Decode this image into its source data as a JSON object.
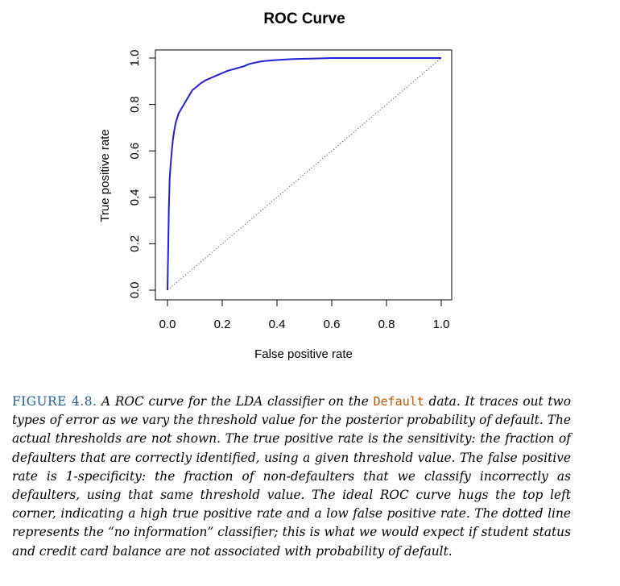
{
  "chart_data": {
    "type": "line",
    "title": "ROC Curve",
    "xlabel": "False positive rate",
    "ylabel": "True positive rate",
    "xlim": [
      0,
      1
    ],
    "ylim": [
      0,
      1
    ],
    "x_ticks": [
      "0.0",
      "0.2",
      "0.4",
      "0.6",
      "0.8",
      "1.0"
    ],
    "y_ticks": [
      "0.0",
      "0.2",
      "0.4",
      "0.6",
      "0.8",
      "1.0"
    ],
    "grid": false,
    "colors": {
      "roc": "#1f1fd6",
      "reference": "#555555"
    },
    "series": [
      {
        "x": [
          0,
          0.003,
          0.005,
          0.008,
          0.012,
          0.016,
          0.02,
          0.025,
          0.03,
          0.035,
          0.04,
          0.045,
          0.05,
          0.06,
          0.07,
          0.08,
          0.09,
          0.1,
          0.11,
          0.12,
          0.14,
          0.16,
          0.18,
          0.2,
          0.22,
          0.25,
          0.28,
          0.3,
          0.34,
          0.38,
          0.45,
          0.5,
          0.6,
          0.7,
          0.8,
          0.9,
          1.0
        ],
        "y": [
          0,
          0.2,
          0.35,
          0.48,
          0.55,
          0.6,
          0.65,
          0.69,
          0.72,
          0.74,
          0.76,
          0.77,
          0.78,
          0.8,
          0.82,
          0.84,
          0.86,
          0.87,
          0.88,
          0.89,
          0.905,
          0.915,
          0.925,
          0.935,
          0.945,
          0.955,
          0.965,
          0.975,
          0.985,
          0.99,
          0.995,
          0.997,
          1.0,
          1.0,
          1.0,
          1.0,
          1.0
        ]
      },
      {
        "x": [
          0,
          1
        ],
        "y": [
          0,
          1
        ]
      }
    ]
  },
  "caption": {
    "label": "FIGURE 4.8.",
    "text_before_code": " A ROC curve for the LDA classifier on the ",
    "code": "Default",
    "text_after_code": " data. It traces out two types of error as we vary the threshold value for the posterior probability of default. The actual thresholds are not shown. The true positive rate is the sensitivity: the fraction of defaulters that are correctly identified, using a given threshold value. The false positive rate is 1-specificity: the fraction of non-defaulters that we classify incorrectly as defaulters, using that same threshold value. The ideal ROC curve hugs the top left corner, indicating a high true positive rate and a low false positive rate. The dotted line represents the “no information” classifier; this is what we would expect if student status and credit card balance are not associated with probability of default."
  }
}
